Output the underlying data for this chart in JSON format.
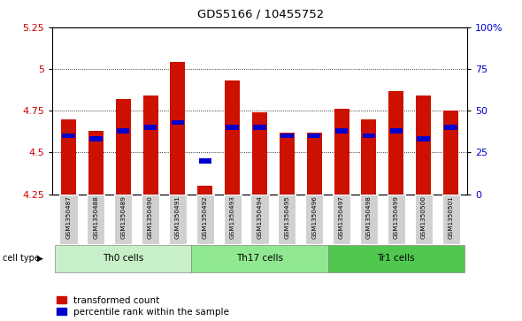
{
  "title": "GDS5166 / 10455752",
  "samples": [
    "GSM1350487",
    "GSM1350488",
    "GSM1350489",
    "GSM1350490",
    "GSM1350491",
    "GSM1350492",
    "GSM1350493",
    "GSM1350494",
    "GSM1350495",
    "GSM1350496",
    "GSM1350497",
    "GSM1350498",
    "GSM1350499",
    "GSM1350500",
    "GSM1350501"
  ],
  "red_values": [
    4.7,
    4.63,
    4.82,
    4.84,
    5.04,
    4.3,
    4.93,
    4.74,
    4.62,
    4.62,
    4.76,
    4.7,
    4.87,
    4.84,
    4.75
  ],
  "blue_values": [
    4.6,
    4.58,
    4.63,
    4.65,
    4.68,
    4.45,
    4.65,
    4.65,
    4.6,
    4.6,
    4.63,
    4.6,
    4.63,
    4.58,
    4.65
  ],
  "cell_groups": [
    {
      "label": "Th0 cells",
      "start": 0,
      "end": 4,
      "color": "#c8f0c8"
    },
    {
      "label": "Th17 cells",
      "start": 5,
      "end": 9,
      "color": "#90e890"
    },
    {
      "label": "Tr1 cells",
      "start": 10,
      "end": 14,
      "color": "#50c850"
    }
  ],
  "ylim_left": [
    4.25,
    5.25
  ],
  "yticks_left": [
    4.25,
    4.5,
    4.75,
    5.0,
    5.25
  ],
  "yticks_right": [
    0,
    25,
    50,
    75,
    100
  ],
  "ylabel_left_color": "#cc0000",
  "ylabel_right_color": "#0000cc",
  "bar_color": "#cc1100",
  "blue_marker_color": "#0000cc",
  "bar_bottom": 4.25,
  "bar_width": 0.55
}
